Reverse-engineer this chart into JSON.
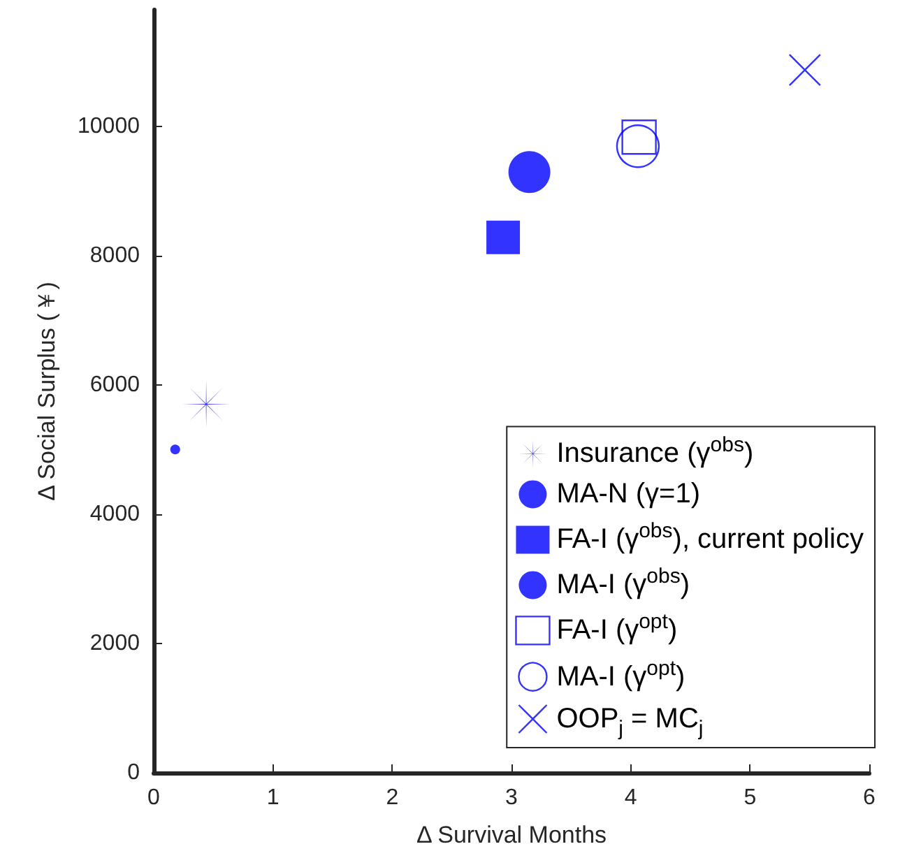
{
  "chart_data": {
    "type": "scatter",
    "xlabel": "Δ Survival Months",
    "ylabel": "Δ Social Surplus (￥)",
    "xlim": [
      0,
      6
    ],
    "xticks": [
      0,
      1,
      2,
      3,
      4,
      5,
      6
    ],
    "ylim": [
      0,
      11800
    ],
    "yticks": [
      0,
      2000,
      4000,
      6000,
      8000,
      10000
    ],
    "grid": false,
    "legend": "bottom right",
    "series": [
      {
        "name": "Insurance (γ$^{obs}$)",
        "color": "#0000ff",
        "marker": "star",
        "x": [
          0.44
        ],
        "values": [
          5700
        ]
      },
      {
        "name": "MA-N (γ=1)",
        "color": "#0000ff",
        "marker": "circle",
        "x": [
          0.18
        ],
        "values": [
          5000
        ]
      },
      {
        "name": "FA-I (γ$^{obs}$), current policy",
        "color": "#0000ff",
        "marker": "square",
        "x": [
          2.93
        ],
        "values": [
          8280
        ]
      },
      {
        "name": "MA-I (γ$^{obs}$)",
        "color": "#0000ff",
        "marker": "circle",
        "x": [
          3.15
        ],
        "values": [
          9290
        ]
      },
      {
        "name": "FA-I (γ$^{opt}$)",
        "color": "#0000ff",
        "marker": "square",
        "x": [
          4.07
        ],
        "values": [
          9830
        ]
      },
      {
        "name": "MA-I (γ$^{opt}$)",
        "color": "#0000ff",
        "marker": "circle",
        "x": [
          4.06
        ],
        "values": [
          9690
        ]
      },
      {
        "name": "OOP$_{j}$ = MC$_{j}$",
        "color": "#0000ff",
        "marker": "cross",
        "x": [
          5.46
        ],
        "values": [
          10870
        ]
      }
    ]
  }
}
